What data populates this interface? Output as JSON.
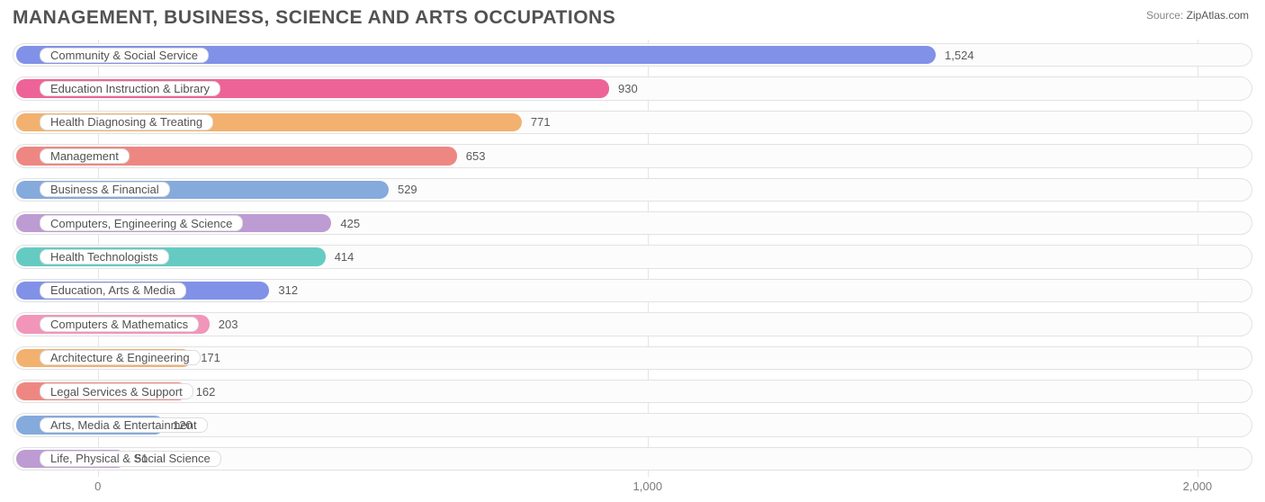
{
  "title": "MANAGEMENT, BUSINESS, SCIENCE AND ARTS OCCUPATIONS",
  "source": {
    "label": "Source:",
    "site": "ZipAtlas.com"
  },
  "chart": {
    "type": "bar-horizontal",
    "xlim": [
      -155,
      2100
    ],
    "ticks": [
      {
        "value": 0,
        "label": "0"
      },
      {
        "value": 1000,
        "label": "1,000"
      },
      {
        "value": 2000,
        "label": "2,000"
      }
    ],
    "grid_color": "#e5e5e5",
    "track_border": "#e2e2e2",
    "track_bg": "#fcfcfc",
    "pill_bg": "#ffffff",
    "pill_border": "#dddddd",
    "label_color": "#525252",
    "value_color": "#5a5a5a",
    "label_fontsize": 13,
    "value_fontsize": 13,
    "bar_radius": 10,
    "row_height": 34.4,
    "bars": [
      {
        "label": "Community & Social Service",
        "value": 1524,
        "value_text": "1,524",
        "color": "#8191e8"
      },
      {
        "label": "Education Instruction & Library",
        "value": 930,
        "value_text": "930",
        "color": "#ee6397"
      },
      {
        "label": "Health Diagnosing & Treating",
        "value": 771,
        "value_text": "771",
        "color": "#f2b16f"
      },
      {
        "label": "Management",
        "value": 653,
        "value_text": "653",
        "color": "#ee8782"
      },
      {
        "label": "Business & Financial",
        "value": 529,
        "value_text": "529",
        "color": "#85aadc"
      },
      {
        "label": "Computers, Engineering & Science",
        "value": 425,
        "value_text": "425",
        "color": "#bd9bd3"
      },
      {
        "label": "Health Technologists",
        "value": 414,
        "value_text": "414",
        "color": "#65cbc2"
      },
      {
        "label": "Education, Arts & Media",
        "value": 312,
        "value_text": "312",
        "color": "#8191e8"
      },
      {
        "label": "Computers & Mathematics",
        "value": 203,
        "value_text": "203",
        "color": "#f295ba"
      },
      {
        "label": "Architecture & Engineering",
        "value": 171,
        "value_text": "171",
        "color": "#f2b16f"
      },
      {
        "label": "Legal Services & Support",
        "value": 162,
        "value_text": "162",
        "color": "#ee8782"
      },
      {
        "label": "Arts, Media & Entertainment",
        "value": 120,
        "value_text": "120",
        "color": "#85aadc"
      },
      {
        "label": "Life, Physical & Social Science",
        "value": 51,
        "value_text": "51",
        "color": "#bd9bd3"
      }
    ]
  }
}
